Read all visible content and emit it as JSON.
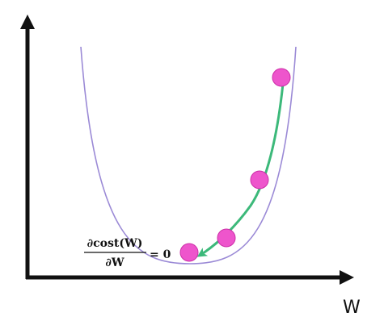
{
  "x_axis_label": "W",
  "equation": {
    "numerator": "∂cost(W)",
    "denominator": "∂W",
    "rhs": "= 0"
  },
  "colors": {
    "axis": "#111111",
    "curve": "#9b8ad6",
    "points": "#ee55cc",
    "point_stroke": "#cc2fa8",
    "arrow": "#3cb97a"
  },
  "gradient_descent_steps": 4
}
